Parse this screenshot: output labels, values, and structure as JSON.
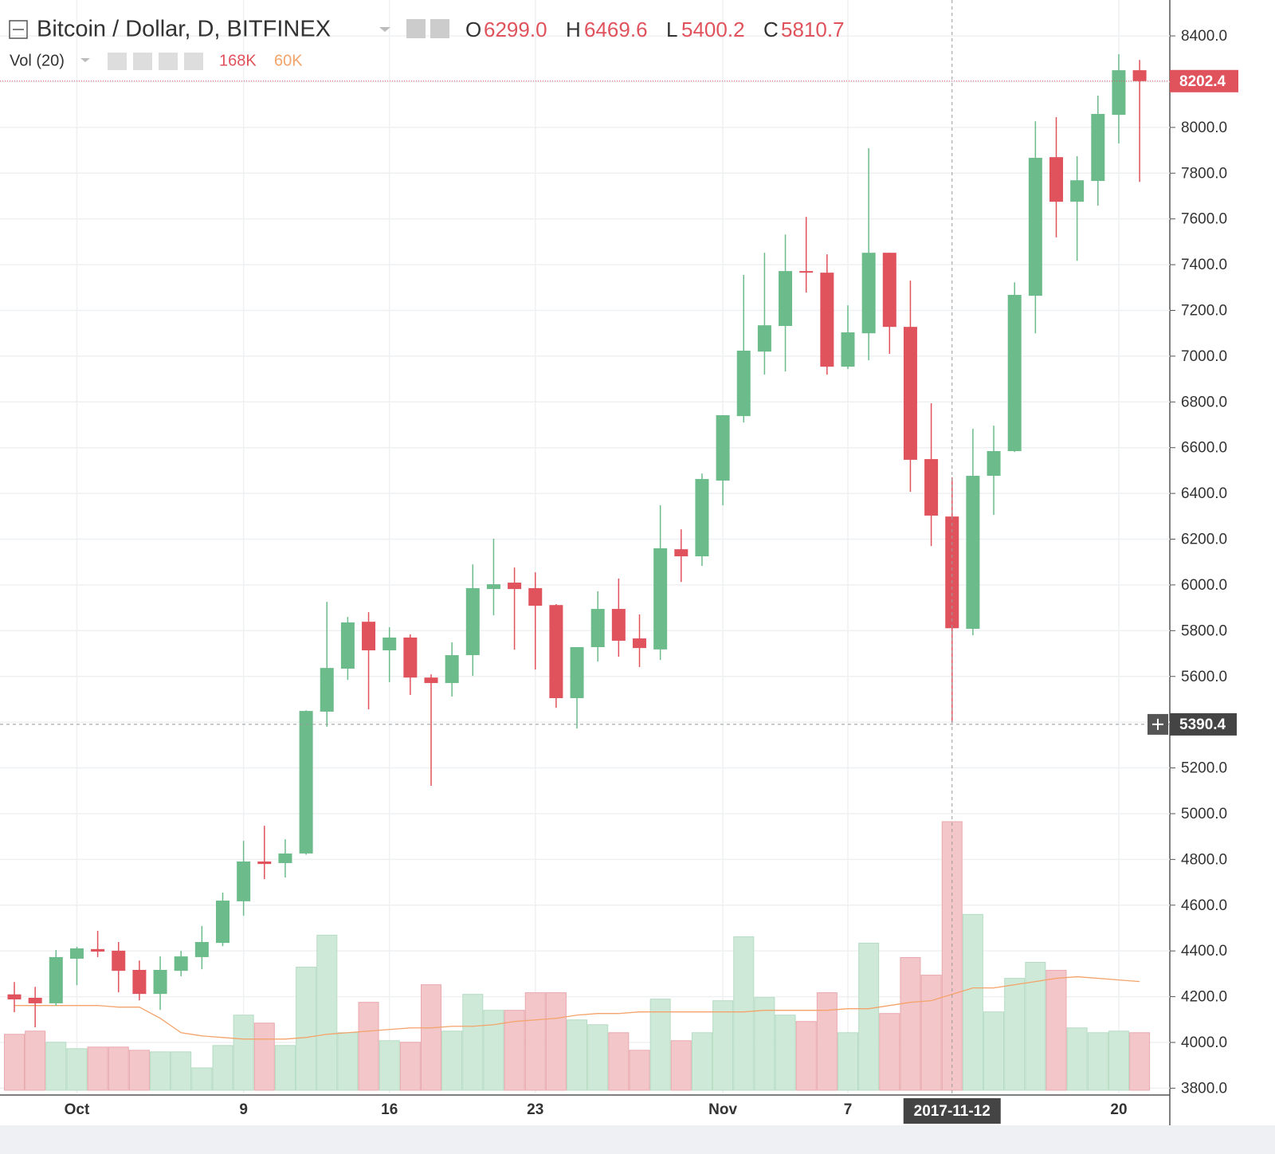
{
  "chart_data": {
    "type": "candlestick",
    "title": "Bitcoin / Dollar, D, BITFINEX",
    "legend": {
      "open_label": "O",
      "open": "6299.0",
      "high_label": "H",
      "high": "6469.6",
      "low_label": "L",
      "low": "5400.2",
      "close_label": "C",
      "close": "5810.7",
      "volume_title": "Vol (20)",
      "volume": "168K",
      "volume_ma": "60K"
    },
    "categories": [
      null,
      null,
      null,
      "Oct",
      null,
      null,
      null,
      null,
      null,
      null,
      null,
      "9",
      null,
      null,
      null,
      null,
      null,
      null,
      "16",
      null,
      null,
      null,
      null,
      null,
      null,
      "23",
      null,
      null,
      null,
      null,
      null,
      null,
      null,
      null,
      "Nov",
      null,
      null,
      null,
      null,
      null,
      "7",
      null,
      null,
      null,
      null,
      null,
      null,
      null,
      null,
      null,
      null,
      null,
      null,
      "20",
      null
    ],
    "open": [
      4210,
      4195,
      4171,
      4366,
      4408,
      4401,
      4317,
      4212,
      4313,
      4373,
      4435,
      4617,
      4791,
      4784,
      4826,
      5446,
      5634,
      5839,
      5714,
      5770,
      5595,
      5571,
      5693,
      5982,
      6010,
      5986,
      5912,
      5505,
      5728,
      5895,
      5766,
      5718,
      6156,
      6125,
      6456,
      6738,
      7020,
      7132,
      7372,
      7365,
      6954,
      7100,
      7452,
      7128,
      6550,
      6299.0,
      5808,
      6477,
      6585,
      7264,
      7870,
      7675,
      7766,
      8055,
      8250
    ],
    "high": [
      4264,
      4243,
      4404,
      4418,
      4488,
      4439,
      4358,
      4376,
      4400,
      4509,
      4655,
      4881,
      4947,
      4888,
      5452,
      5926,
      5860,
      5881,
      5815,
      5784,
      5609,
      5749,
      6090,
      6202,
      6076,
      6055,
      5916,
      5728,
      5972,
      6028,
      5871,
      6348,
      6243,
      6487,
      6742,
      7355,
      7452,
      7532,
      7609,
      7445,
      7222,
      7909,
      7452,
      7330,
      6794,
      6469.6,
      6683,
      6696,
      7323,
      8027,
      8045,
      7874,
      8139,
      8320,
      8295
    ],
    "low": [
      4132,
      4066,
      4160,
      4250,
      4373,
      4219,
      4184,
      4142,
      4289,
      4320,
      4421,
      4554,
      4714,
      4721,
      4820,
      5380,
      5585,
      5456,
      5575,
      5519,
      5122,
      5512,
      5602,
      5867,
      5717,
      5630,
      5463,
      5372,
      5665,
      5686,
      5641,
      5672,
      6013,
      6083,
      6348,
      6710,
      6919,
      6933,
      7278,
      6919,
      6944,
      6982,
      7010,
      6407,
      6170,
      5400.2,
      5780,
      6306,
      6581,
      7100,
      7519,
      7417,
      7658,
      7930,
      7762
    ],
    "close": [
      4188,
      4171,
      4373,
      4411,
      4397,
      4313,
      4212,
      4317,
      4376,
      4439,
      4620,
      4791,
      4780,
      4826,
      5449,
      5637,
      5836,
      5714,
      5770,
      5595,
      5571,
      5693,
      5986,
      6003,
      5982,
      5909,
      5505,
      5728,
      5895,
      5756,
      5724,
      6160,
      6125,
      6463,
      6742,
      7024,
      7135,
      7372,
      7365,
      6954,
      7104,
      7452,
      7128,
      6547,
      6303,
      5810.7,
      6477,
      6585,
      7268,
      7867,
      7675,
      7769,
      8059,
      8250,
      8202.4
    ],
    "up_color": "#6cbb8b",
    "down_color": "#e0525c",
    "ylim": [
      3777,
      8557
    ],
    "yticks": [
      {
        "value": 3800,
        "label": "3800.0"
      },
      {
        "value": 4000,
        "label": "4000.0"
      },
      {
        "value": 4200,
        "label": "4200.0"
      },
      {
        "value": 4400,
        "label": "4400.0"
      },
      {
        "value": 4600,
        "label": "4600.0"
      },
      {
        "value": 4800,
        "label": "4800.0"
      },
      {
        "value": 5000,
        "label": "5000.0"
      },
      {
        "value": 5200,
        "label": "5200.0"
      },
      {
        "value": 5400,
        "label": "5400.0"
      },
      {
        "value": 5600,
        "label": "5600.0"
      },
      {
        "value": 5800,
        "label": "5800.0"
      },
      {
        "value": 6000,
        "label": "6000.0"
      },
      {
        "value": 6200,
        "label": "6200.0"
      },
      {
        "value": 6400,
        "label": "6400.0"
      },
      {
        "value": 6600,
        "label": "6600.0"
      },
      {
        "value": 6800,
        "label": "6800.0"
      },
      {
        "value": 7000,
        "label": "7000.0"
      },
      {
        "value": 7200,
        "label": "7200.0"
      },
      {
        "value": 7400,
        "label": "7400.0"
      },
      {
        "value": 7600,
        "label": "7600.0"
      },
      {
        "value": 7800,
        "label": "7800.0"
      },
      {
        "value": 8000,
        "label": "8000.0"
      },
      {
        "value": 8200,
        "label": "8200.0"
      },
      {
        "value": 8400,
        "label": "8400.0"
      }
    ],
    "grid": true,
    "volume": {
      "values": [
        35000,
        37000,
        30000,
        26000,
        27000,
        27000,
        25000,
        24000,
        24000,
        14000,
        28000,
        47000,
        42000,
        28000,
        77000,
        97000,
        36000,
        55000,
        31000,
        30000,
        66000,
        37000,
        60000,
        50000,
        50000,
        61000,
        61000,
        44000,
        41000,
        36000,
        25000,
        57000,
        31000,
        36000,
        56000,
        96000,
        58000,
        47000,
        43000,
        61000,
        36000,
        92000,
        48000,
        83000,
        72000,
        168000,
        110000,
        49000,
        70000,
        80000,
        75000,
        39000,
        36000,
        37000,
        36000
      ],
      "ma": [
        53000,
        53000,
        53000,
        53000,
        53000,
        52000,
        52000,
        45000,
        36000,
        34000,
        33000,
        32000,
        32000,
        32000,
        33000,
        35000,
        36000,
        37000,
        38000,
        39000,
        39000,
        40000,
        40000,
        41000,
        43000,
        44000,
        45000,
        47000,
        48000,
        48000,
        49000,
        49000,
        49000,
        49000,
        49000,
        49000,
        50000,
        50000,
        50000,
        50000,
        51000,
        51000,
        53000,
        55000,
        56000,
        60000,
        64000,
        64000,
        66000,
        68000,
        70000,
        71000,
        70000,
        69000,
        68000
      ],
      "ylim": [
        0,
        500000
      ],
      "up_color": "#cfe9d8",
      "down_color": "#f3c6c9",
      "ma_color": "#f4a36a"
    },
    "crosshair": {
      "x_label": "2017-11-12",
      "price": 5390.4
    }
  }
}
